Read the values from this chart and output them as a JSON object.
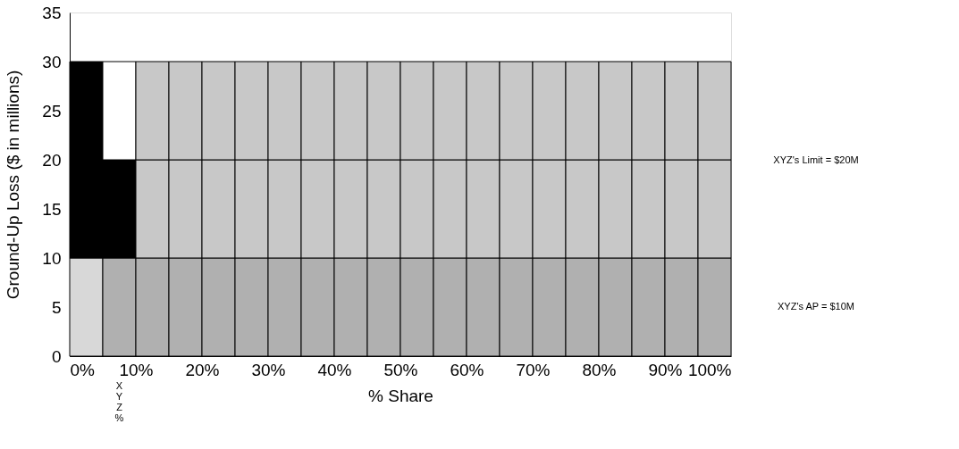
{
  "chart_data": {
    "type": "bar",
    "stacked": true,
    "xlabel": "% Share",
    "ylabel": "Ground-Up Loss ($ in millions)",
    "x": [
      2.5,
      7.5,
      12.5,
      17.5,
      22.5,
      27.5,
      32.5,
      37.5,
      42.5,
      47.5,
      52.5,
      57.5,
      62.5,
      67.5,
      72.5,
      77.5,
      82.5,
      87.5,
      92.5,
      97.5
    ],
    "series": [
      {
        "colors": [
          "#d8d8d8",
          "#b0b0b0",
          "#b0b0b0",
          "#b0b0b0",
          "#b0b0b0",
          "#b0b0b0",
          "#b0b0b0",
          "#b0b0b0",
          "#b0b0b0",
          "#b0b0b0",
          "#b0b0b0",
          "#b0b0b0",
          "#b0b0b0",
          "#b0b0b0",
          "#b0b0b0",
          "#b0b0b0",
          "#b0b0b0",
          "#b0b0b0",
          "#b0b0b0",
          "#b0b0b0"
        ],
        "values": [
          10,
          10,
          10,
          10,
          10,
          10,
          10,
          10,
          10,
          10,
          10,
          10,
          10,
          10,
          10,
          10,
          10,
          10,
          10,
          10
        ]
      },
      {
        "colors": [
          "#000000",
          "#000000",
          "#c8c8c8",
          "#c8c8c8",
          "#c8c8c8",
          "#c8c8c8",
          "#c8c8c8",
          "#c8c8c8",
          "#c8c8c8",
          "#c8c8c8",
          "#c8c8c8",
          "#c8c8c8",
          "#c8c8c8",
          "#c8c8c8",
          "#c8c8c8",
          "#c8c8c8",
          "#c8c8c8",
          "#c8c8c8",
          "#c8c8c8",
          "#c8c8c8"
        ],
        "values": [
          10,
          10,
          10,
          10,
          10,
          10,
          10,
          10,
          10,
          10,
          10,
          10,
          10,
          10,
          10,
          10,
          10,
          10,
          10,
          10
        ]
      },
      {
        "colors": [
          "#000000",
          "#ffffff",
          "#c8c8c8",
          "#c8c8c8",
          "#c8c8c8",
          "#c8c8c8",
          "#c8c8c8",
          "#c8c8c8",
          "#c8c8c8",
          "#c8c8c8",
          "#c8c8c8",
          "#c8c8c8",
          "#c8c8c8",
          "#c8c8c8",
          "#c8c8c8",
          "#c8c8c8",
          "#c8c8c8",
          "#c8c8c8",
          "#c8c8c8",
          "#c8c8c8"
        ],
        "values": [
          10,
          10,
          10,
          10,
          10,
          10,
          10,
          10,
          10,
          10,
          10,
          10,
          10,
          10,
          10,
          10,
          10,
          10,
          10,
          10
        ]
      }
    ],
    "xlim": [
      0,
      100
    ],
    "xticks": [
      {
        "value": 0,
        "label": "0%"
      },
      {
        "value": 10,
        "label": "10%"
      },
      {
        "value": 20,
        "label": "20%"
      },
      {
        "value": 30,
        "label": "30%"
      },
      {
        "value": 40,
        "label": "40%"
      },
      {
        "value": 50,
        "label": "50%"
      },
      {
        "value": 60,
        "label": "60%"
      },
      {
        "value": 70,
        "label": "70%"
      },
      {
        "value": 80,
        "label": "80%"
      },
      {
        "value": 90,
        "label": "90%"
      },
      {
        "value": 100,
        "label": "100%"
      }
    ],
    "ylim": [
      0,
      35
    ],
    "yticks": [
      0,
      5,
      10,
      15,
      20,
      25,
      30,
      35
    ],
    "annotations": [
      "XYZ's Limit = $20M",
      "XYZ's AP = $10M",
      "X\nY\nZ\n%"
    ]
  }
}
